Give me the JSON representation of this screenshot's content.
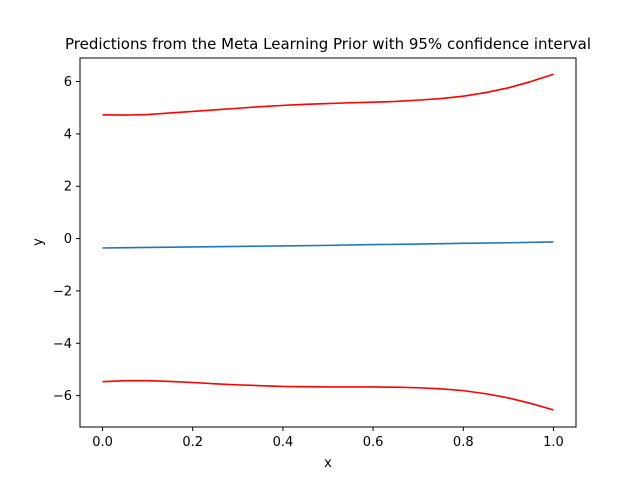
{
  "chart_data": {
    "type": "line",
    "title": "Predictions from the Meta Learning Prior with 95% confidence interval",
    "xlabel": "x",
    "ylabel": "y",
    "xlim": [
      -0.05,
      1.05
    ],
    "ylim": [
      -7.2,
      6.9
    ],
    "xticks": [
      0.0,
      0.2,
      0.4,
      0.6,
      0.8,
      1.0
    ],
    "xtick_labels": [
      "0.0",
      "0.2",
      "0.4",
      "0.6",
      "0.8",
      "1.0"
    ],
    "yticks": [
      -6,
      -4,
      -2,
      0,
      2,
      4,
      6
    ],
    "ytick_labels": [
      "−6",
      "−4",
      "−2",
      "0",
      "2",
      "4",
      "6"
    ],
    "grid": false,
    "series": [
      {
        "color": "#1f77b4",
        "x": [
          0.0,
          0.1,
          0.2,
          0.3,
          0.4,
          0.5,
          0.6,
          0.7,
          0.8,
          0.9,
          1.0
        ],
        "y": [
          -0.36,
          -0.34,
          -0.32,
          -0.3,
          -0.28,
          -0.26,
          -0.23,
          -0.21,
          -0.18,
          -0.16,
          -0.13
        ]
      },
      {
        "color": "#ff0000",
        "x": [
          0.0,
          0.05,
          0.1,
          0.15,
          0.2,
          0.25,
          0.3,
          0.35,
          0.4,
          0.45,
          0.5,
          0.55,
          0.6,
          0.65,
          0.7,
          0.75,
          0.8,
          0.85,
          0.9,
          0.95,
          1.0
        ],
        "y": [
          4.73,
          4.72,
          4.74,
          4.8,
          4.86,
          4.92,
          4.98,
          5.04,
          5.09,
          5.13,
          5.16,
          5.19,
          5.21,
          5.24,
          5.29,
          5.35,
          5.44,
          5.58,
          5.76,
          6.0,
          6.28
        ]
      },
      {
        "color": "#ff0000",
        "x": [
          0.0,
          0.05,
          0.1,
          0.15,
          0.2,
          0.25,
          0.3,
          0.35,
          0.4,
          0.45,
          0.5,
          0.55,
          0.6,
          0.65,
          0.7,
          0.75,
          0.8,
          0.85,
          0.9,
          0.95,
          1.0
        ],
        "y": [
          -5.47,
          -5.43,
          -5.43,
          -5.46,
          -5.5,
          -5.55,
          -5.59,
          -5.62,
          -5.65,
          -5.66,
          -5.67,
          -5.67,
          -5.67,
          -5.68,
          -5.7,
          -5.74,
          -5.81,
          -5.93,
          -6.09,
          -6.3,
          -6.55
        ]
      }
    ]
  }
}
